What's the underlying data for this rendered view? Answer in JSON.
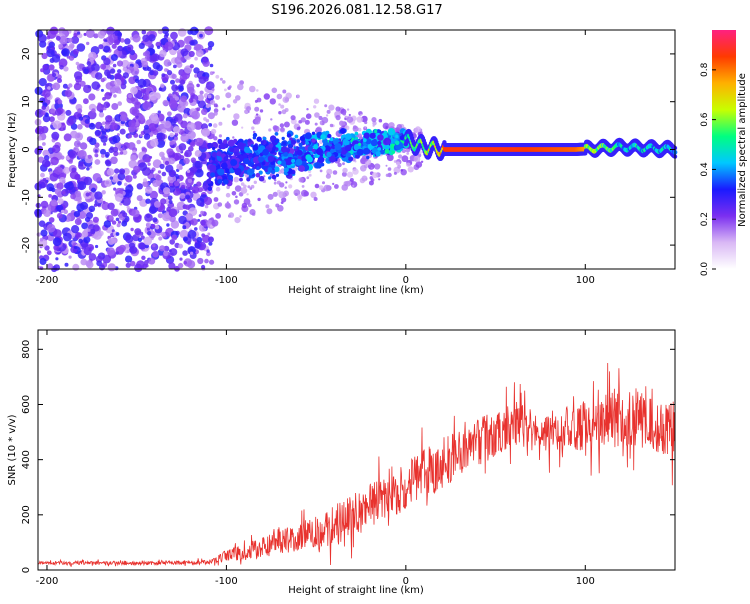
{
  "title": "S196.2026.081.12.58.G17",
  "colors": {
    "snr_line": "#e8322e",
    "axis": "#000000"
  },
  "chart_data": [
    {
      "type": "heatmap",
      "xlabel": "Height of straight line (km)",
      "ylabel": "Frequency (Hz)",
      "xlim": [
        -205,
        150
      ],
      "ylim": [
        -25,
        25
      ],
      "xticks": [
        "-200",
        "-100",
        "0",
        "100"
      ],
      "xtick_values": [
        -200,
        -100,
        0,
        100
      ],
      "yticks": [
        "-20",
        "-10",
        "0",
        "10",
        "20"
      ],
      "ytick_values": [
        -20,
        -10,
        0,
        10,
        20
      ],
      "colorbar": {
        "label": "Normalized spectral amplitude",
        "range": [
          0,
          0.96
        ],
        "ticks": [
          "0.0",
          "0.2",
          "0.4",
          "0.6",
          "0.8"
        ],
        "tick_values": [
          0,
          0.2,
          0.4,
          0.6,
          0.8
        ],
        "colormap": [
          "#ffffff",
          "#d9b8f5",
          "#7b2ff0",
          "#1a1aff",
          "#00c8ff",
          "#00ff80",
          "#c8ff00",
          "#ffb000",
          "#ff3a00",
          "#ff2080"
        ]
      },
      "features": {
        "noise_region_x": [
          -205,
          -110
        ],
        "transition_region_x": [
          -110,
          0
        ],
        "carrier_track": [
          {
            "x": 0,
            "y": 2,
            "amp": 0.6
          },
          {
            "x": 10,
            "y": 0.5,
            "amp": 0.7
          },
          {
            "x": 22,
            "y": 0,
            "amp": 0.9
          },
          {
            "x": 60,
            "y": 0,
            "amp": 0.9
          },
          {
            "x": 95,
            "y": 0,
            "amp": 0.85
          },
          {
            "x": 120,
            "y": 0.5,
            "amp": 0.6
          },
          {
            "x": 150,
            "y": 0,
            "amp": 0.55
          }
        ]
      }
    },
    {
      "type": "line",
      "xlabel": "Height of straight line (km)",
      "ylabel": "SNR (10 * v/v)",
      "xlim": [
        -205,
        150
      ],
      "ylim": [
        0,
        870
      ],
      "xticks": [
        "-200",
        "-100",
        "0",
        "100"
      ],
      "xtick_values": [
        -200,
        -100,
        0,
        100
      ],
      "yticks": [
        "0",
        "200",
        "400",
        "600",
        "800"
      ],
      "ytick_values": [
        0,
        200,
        400,
        600,
        800
      ],
      "series": [
        {
          "name": "SNR",
          "envelope": {
            "x": [
              -205,
              -150,
              -110,
              -100,
              -80,
              -60,
              -40,
              -20,
              0,
              20,
              40,
              60,
              80,
              100,
              120,
              150
            ],
            "mean": [
              25,
              25,
              28,
              50,
              80,
              120,
              160,
              230,
              300,
              390,
              460,
              530,
              500,
              520,
              560,
              520
            ],
            "spread": [
              12,
              12,
              15,
              40,
              70,
              90,
              130,
              150,
              160,
              170,
              160,
              140,
              140,
              160,
              210,
              200
            ]
          }
        }
      ]
    }
  ]
}
